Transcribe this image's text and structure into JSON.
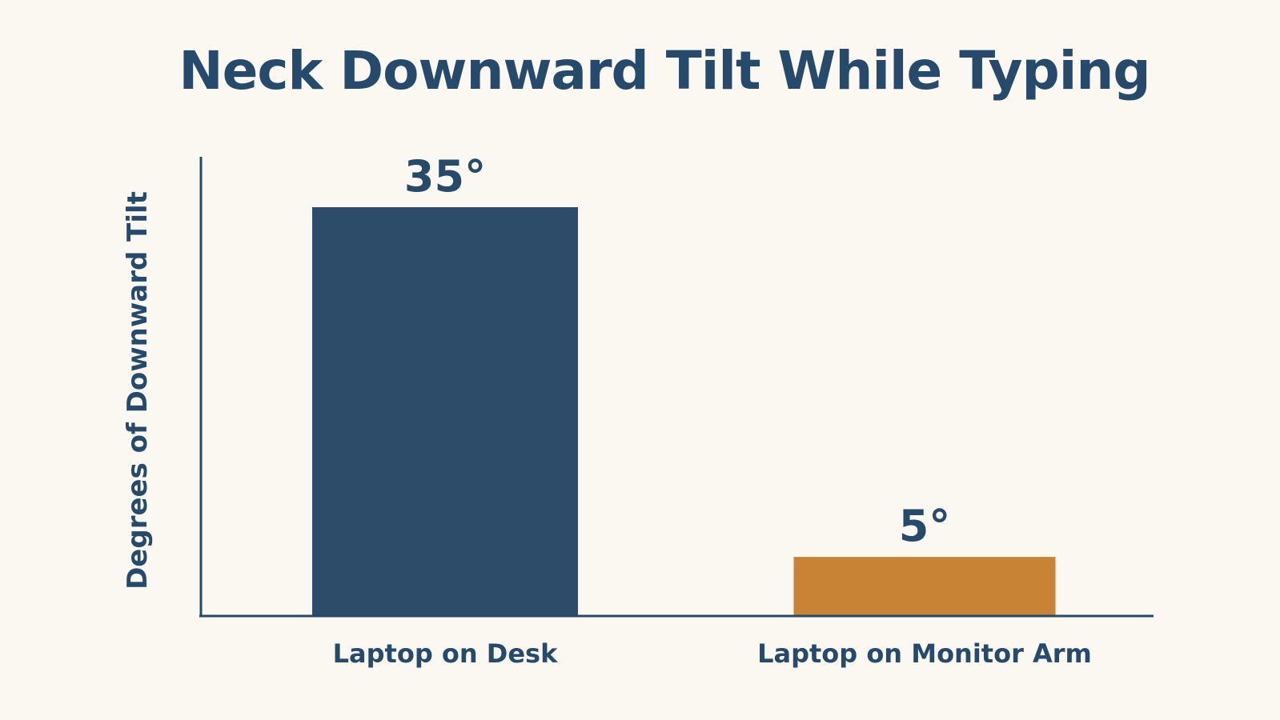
{
  "chart_data": {
    "type": "bar",
    "title": "Neck Downward Tilt While Typing",
    "xlabel": "",
    "ylabel": "Degrees of Downward Tilt",
    "categories": [
      "Laptop on Desk",
      "Laptop on Monitor Arm"
    ],
    "values": [
      35,
      5
    ],
    "data_labels": [
      "35°",
      "5°"
    ],
    "colors": [
      "#2c4c69",
      "#c98335"
    ],
    "ylim": [
      0,
      35
    ],
    "grid": false,
    "legend": "none"
  },
  "colors": {
    "background": "#fbf8f1",
    "text": "#254a6c",
    "axis": "#254a6c"
  }
}
